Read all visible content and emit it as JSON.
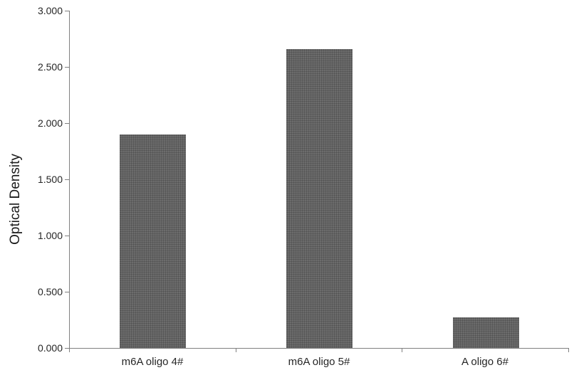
{
  "chart_data": {
    "type": "bar",
    "title": "",
    "categories": [
      "m6A oligo 4#",
      "m6A oligo 5#",
      "A oligo 6#"
    ],
    "values": [
      1.9,
      2.66,
      0.27
    ],
    "xlabel": "",
    "ylabel": "Optical Density",
    "ylim": [
      0,
      3.0
    ],
    "ytick_step": 0.5,
    "ytick_labels": [
      "0.000",
      "0.500",
      "1.000",
      "1.500",
      "2.000",
      "2.500",
      "3.000"
    ],
    "grid": false,
    "legend": false,
    "bar_color": "#6c6c6c",
    "bar_dot_color": "#515151",
    "axis_color": "#808080",
    "text_color": "#262626"
  }
}
